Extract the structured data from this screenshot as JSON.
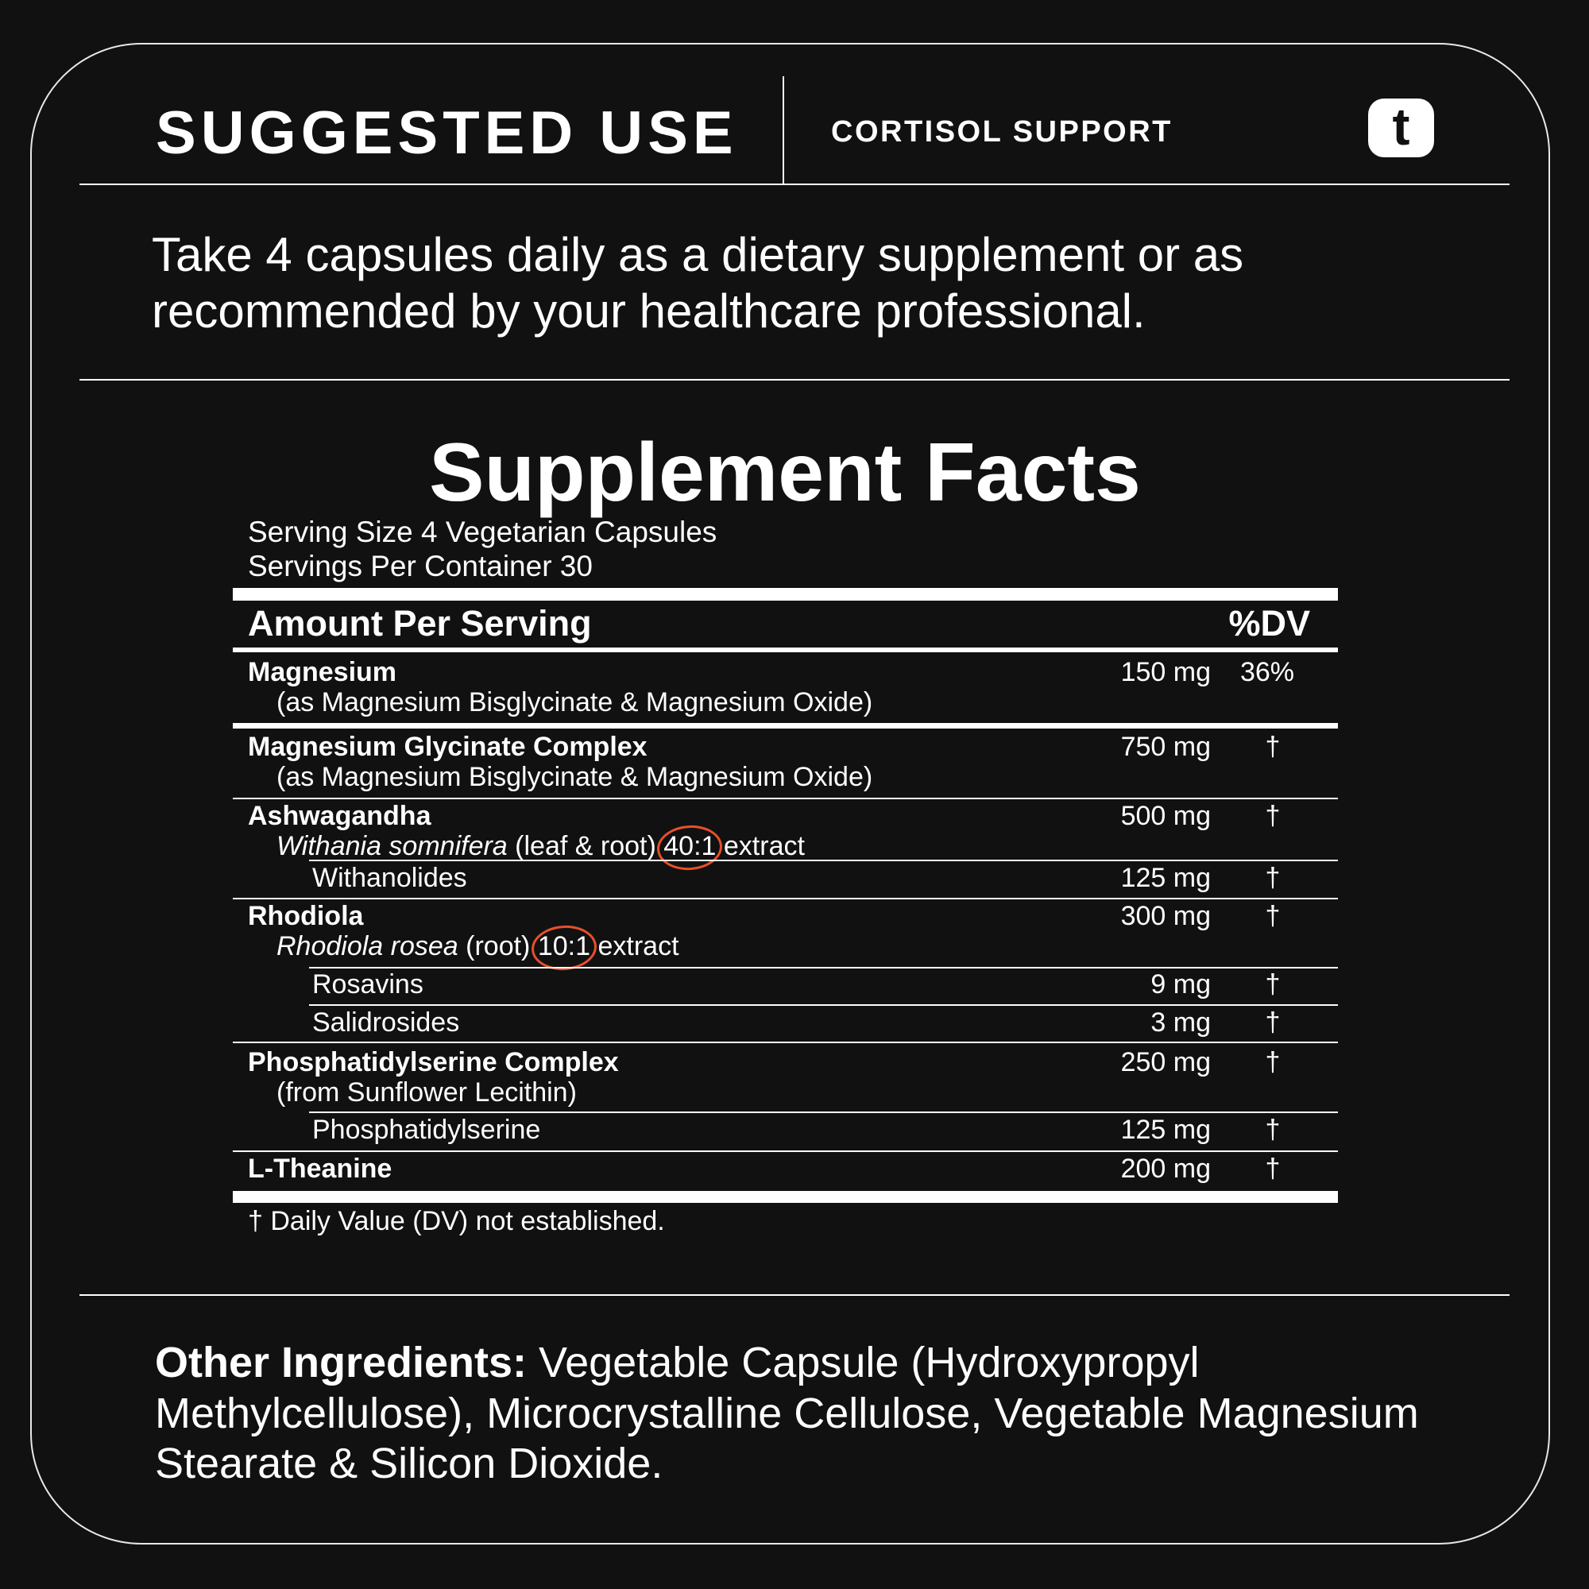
{
  "header": {
    "title": "SUGGESTED USE",
    "product": "CORTISOL SUPPORT",
    "logo_letter": "t"
  },
  "suggested_use": "Take 4 capsules daily as a dietary supplement or as recommended by your healthcare professional.",
  "facts": {
    "title": "Supplement Facts",
    "serving_size": "Serving Size 4 Vegetarian Capsules",
    "servings_per_container": "Servings Per Container 30",
    "amount_header": "Amount Per Serving",
    "dv_header": "%DV",
    "rows": [
      {
        "name": "Magnesium",
        "amount": "150 mg",
        "dv": "36%"
      },
      {
        "name": "(as Magnesium Bisglycinate & Magnesium Oxide)"
      },
      {
        "name": "Magnesium Glycinate Complex",
        "amount": "750 mg",
        "dv": "†"
      },
      {
        "name": "(as Magnesium Bisglycinate & Magnesium Oxide)"
      },
      {
        "name": "Ashwagandha",
        "amount": "500 mg",
        "dv": "†"
      },
      {
        "name_italic": "Withania somnifera",
        "name_rest": " (leaf & root)",
        "ratio": "40:1",
        "suffix": "extract"
      },
      {
        "name": "Withanolides",
        "amount": "125 mg",
        "dv": "†"
      },
      {
        "name": "Rhodiola",
        "amount": "300 mg",
        "dv": "†"
      },
      {
        "name_italic": "Rhodiola rosea",
        "name_rest": " (root)",
        "ratio": "10:1",
        "suffix": "extract"
      },
      {
        "name": "Rosavins",
        "amount": "9 mg",
        "dv": "†"
      },
      {
        "name": "Salidrosides",
        "amount": "3 mg",
        "dv": "†"
      },
      {
        "name": "Phosphatidylserine Complex",
        "amount": "250 mg",
        "dv": "†"
      },
      {
        "name": "(from Sunflower Lecithin)"
      },
      {
        "name": "Phosphatidylserine",
        "amount": "125 mg",
        "dv": "†"
      },
      {
        "name": "L-Theanine",
        "amount": "200 mg",
        "dv": "†"
      }
    ],
    "footnote": "† Daily Value (DV) not established."
  },
  "other_ingredients": {
    "label": "Other Ingredients:",
    "text": " Vegetable Capsule (Hydroxypropyl Methylcellulose), Microcrystalline Cellulose, Vegetable Magnesium Stearate & Silicon Dioxide."
  },
  "colors": {
    "background": "#111111",
    "text": "#ffffff",
    "highlight_circle": "#e8502a"
  }
}
